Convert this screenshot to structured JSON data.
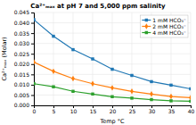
{
  "chart_data": {
    "type": "line",
    "title": "Ca²⁺ₘₐₓ at pH 7 and 5,000 ppm salinity",
    "xlabel": "Temp °C",
    "ylabel": "Ca²⁺ₘₐₓ (Molar)",
    "x": [
      0,
      5,
      10,
      15,
      20,
      25,
      30,
      35,
      40
    ],
    "series": [
      {
        "name": "1 mM HCO₃⁻",
        "marker": "square",
        "values": [
          0.0415,
          0.0335,
          0.027,
          0.0225,
          0.0175,
          0.0145,
          0.0115,
          0.0098,
          0.008
        ]
      },
      {
        "name": "2 mM HCO₃⁻",
        "marker": "diamond",
        "values": [
          0.021,
          0.0165,
          0.013,
          0.0105,
          0.0085,
          0.0068,
          0.0055,
          0.0043,
          0.0037
        ]
      },
      {
        "name": "4 mM HCO₃⁻",
        "marker": "square",
        "values": [
          0.0105,
          0.009,
          0.0068,
          0.0055,
          0.0042,
          0.0035,
          0.0028,
          0.0022,
          0.002
        ]
      }
    ],
    "xlim": [
      0,
      40
    ],
    "xticks": [
      0,
      5,
      10,
      15,
      20,
      25,
      30,
      35,
      40
    ],
    "ylim": [
      0,
      0.045
    ],
    "yticks": [
      {
        "value": 0,
        "label": "0.000"
      },
      {
        "value": 0.005,
        "label": "0.005"
      },
      {
        "value": 0.01,
        "label": "0.010"
      },
      {
        "value": 0.015,
        "label": "0.015"
      },
      {
        "value": 0.02,
        "label": "0.020"
      },
      {
        "value": 0.025,
        "label": "0.025"
      },
      {
        "value": 0.03,
        "label": "0.030"
      },
      {
        "value": 0.035,
        "label": "0.035"
      },
      {
        "value": 0.04,
        "label": "0.040"
      },
      {
        "value": 0.045,
        "label": "0.045"
      }
    ],
    "grid": true,
    "legend": "upper right"
  }
}
